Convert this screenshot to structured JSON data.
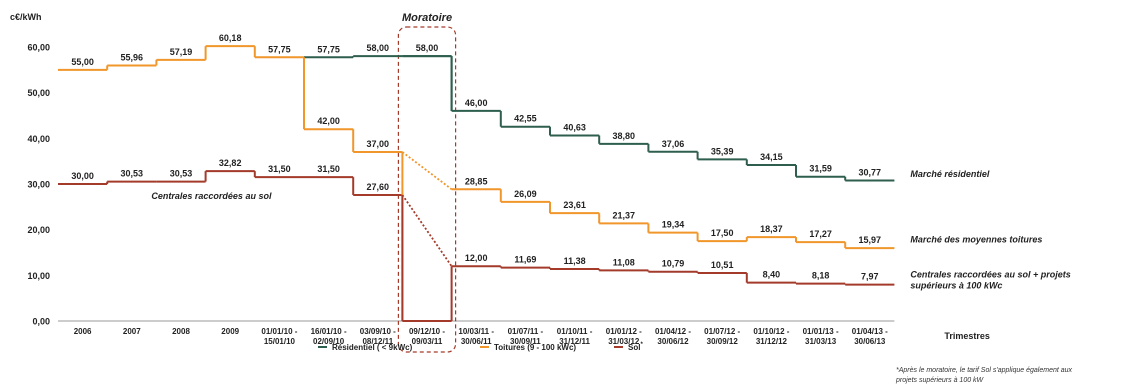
{
  "chart_data": {
    "type": "line",
    "step": true,
    "ylabel": "c€/kWh",
    "xlabel": "Trimestres",
    "ylim": [
      0,
      60
    ],
    "yticks": [
      "0,00",
      "10,00",
      "20,00",
      "30,00",
      "40,00",
      "50,00",
      "60,00"
    ],
    "grid": false,
    "legend_position": "bottom",
    "categories": [
      [
        "2006"
      ],
      [
        "2007"
      ],
      [
        "2008"
      ],
      [
        "2009"
      ],
      [
        "01/01/10 -",
        "15/01/10"
      ],
      [
        "16/01/10 -",
        "02/09/10"
      ],
      [
        "03/09/10 -",
        "08/12/11"
      ],
      [
        "09/12/10 -",
        "09/03/11"
      ],
      [
        "10/03/11 -",
        "30/06/11"
      ],
      [
        "01/07/11 -",
        "30/09/11"
      ],
      [
        "01/10/11 -",
        "31/12/11"
      ],
      [
        "01/01/12 -",
        "31/03/12"
      ],
      [
        "01/04/12 -",
        "30/06/12"
      ],
      [
        "01/07/12 -",
        "30/09/12"
      ],
      [
        "01/10/12 -",
        "31/12/12"
      ],
      [
        "01/01/13 -",
        "31/03/13"
      ],
      [
        "01/04/13 -",
        "30/06/13"
      ]
    ],
    "series": [
      {
        "name": "Résidentiel ( < 9kWc)",
        "color": "#2e5e4e",
        "values": [
          null,
          null,
          null,
          null,
          null,
          57.75,
          58.0,
          58.0,
          46.0,
          42.55,
          40.63,
          38.8,
          37.06,
          35.39,
          34.15,
          31.59,
          30.77
        ],
        "labels": [
          "",
          "",
          "",
          "",
          "",
          "",
          "",
          "",
          "46,00",
          "42,55",
          "40,63",
          "38,80",
          "37,06",
          "35,39",
          "34,15",
          "31,59",
          "30,77"
        ]
      },
      {
        "name": "Toitures (9 - 100 kWc)",
        "color": "#f0962a",
        "values": [
          55.0,
          55.96,
          57.19,
          60.18,
          57.75,
          42.0,
          37.0,
          null,
          28.85,
          26.09,
          23.61,
          21.37,
          19.34,
          17.5,
          18.37,
          17.27,
          15.97
        ],
        "labels": [
          "55,00",
          "55,96",
          "57,19",
          "60,18",
          "57,75",
          "42,00",
          "37,00",
          "",
          "28,85",
          "26,09",
          "23,61",
          "21,37",
          "19,34",
          "17,50",
          "18,37",
          "17,27",
          "15,97"
        ]
      },
      {
        "name": "Sol",
        "color": "#a33a2a",
        "values": [
          30.0,
          30.53,
          30.53,
          32.82,
          31.5,
          31.5,
          27.6,
          null,
          12.0,
          11.69,
          11.38,
          11.08,
          10.79,
          10.51,
          8.4,
          8.18,
          7.97
        ],
        "labels": [
          "30,00",
          "30,53",
          "30,53",
          "32,82",
          "31,50",
          "31,50",
          "27,60",
          "",
          "12,00",
          "11,69",
          "11,38",
          "11,08",
          "10,79",
          "10,51",
          "8,40",
          "8,18",
          "7,97"
        ]
      }
    ],
    "shared_labels": [
      {
        "index": 5,
        "text": "57,75"
      },
      {
        "index": 6,
        "text": "58,00"
      },
      {
        "index": 7,
        "text": "58,00"
      }
    ],
    "moratorium": {
      "index": 7,
      "label": "Moratoire",
      "residential_value": 58.0,
      "other_value": 0
    },
    "annotations": [
      {
        "text": "Centrales raccordées au sol"
      },
      {
        "text": "Marché résidentiel"
      },
      {
        "text": "Marché des moyennes toitures"
      },
      {
        "text": "Centrales raccordées au sol + projets"
      },
      {
        "text": "supérieurs à 100 kWc"
      }
    ],
    "footnote": [
      "*Après le moratoire, le tarif Sol s'applique également aux",
      "projets supérieurs à 100 kW"
    ],
    "legend_sol_sup": "*"
  }
}
